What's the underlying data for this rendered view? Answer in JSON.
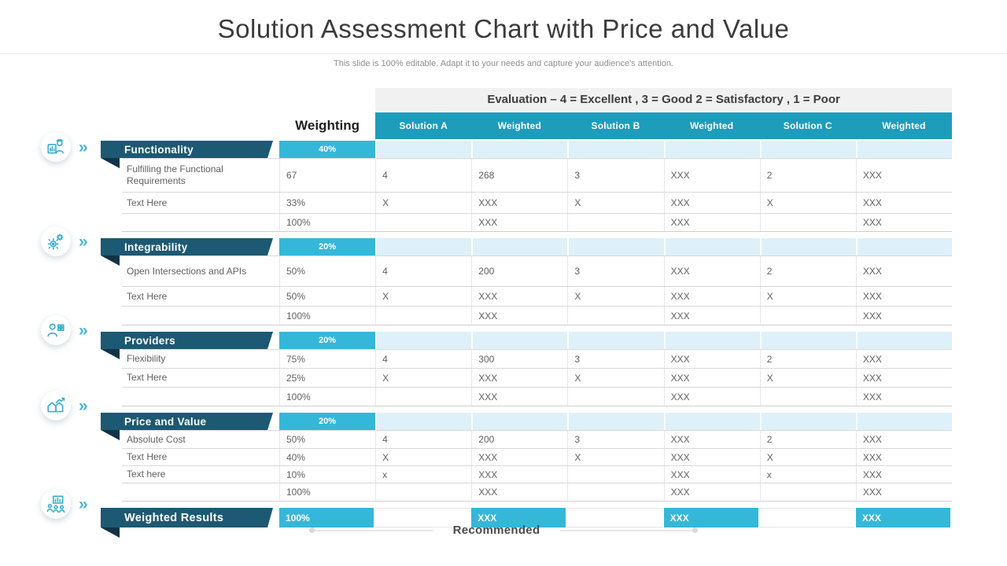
{
  "slide": {
    "title": "Solution Assessment Chart with Price and Value",
    "subtitle": "This slide is 100% editable. Adapt it to your needs and capture your audience's attention."
  },
  "colors": {
    "teal_header": "#1e9cbb",
    "cyan_accent": "#35b7d9",
    "dark_banner": "#1d5972",
    "banner_fold": "#123347",
    "light_band": "#def0f9",
    "evaluation_bar_bg": "#f1f1f1",
    "body_text": "#616161",
    "icon_cyan": "#3aadcd"
  },
  "icons": {
    "chevron_glyph": "»",
    "items": [
      "analyst-monitor-icon",
      "gears-icon",
      "person-network-icon",
      "house-growth-icon",
      "team-chart-icon"
    ]
  },
  "table": {
    "evaluation_note": "Evaluation – 4 = Excellent , 3 = Good 2 = Satisfactory , 1 = Poor",
    "weighting_label": "Weighting",
    "column_headers": [
      "Solution A",
      "Weighted",
      "Solution B",
      "Weighted",
      "Solution C",
      "Weighted"
    ],
    "sections": [
      {
        "name": "Functionality",
        "weight": "40%",
        "icon": "analyst-monitor-icon",
        "rows": [
          {
            "label": "Fulfilling the Functional Requirements",
            "cells": [
              "67",
              "4",
              "268",
              "3",
              "XXX",
              "2",
              "XXX"
            ]
          },
          {
            "label": "Text Here",
            "cells": [
              "33%",
              "X",
              "XXX",
              "X",
              "XXX",
              "X",
              "XXX"
            ]
          },
          {
            "label": "",
            "cells": [
              "100%",
              "",
              "XXX",
              "",
              "XXX",
              "",
              "XXX"
            ]
          }
        ]
      },
      {
        "name": "Integrability",
        "weight": "20%",
        "icon": "gears-icon",
        "rows": [
          {
            "label": "Open Intersections and APIs",
            "cells": [
              "50%",
              "4",
              "200",
              "3",
              "XXX",
              "2",
              "XXX"
            ]
          },
          {
            "label": "Text Here",
            "cells": [
              "50%",
              "X",
              "XXX",
              "X",
              "XXX",
              "X",
              "XXX"
            ]
          },
          {
            "label": "",
            "cells": [
              "100%",
              "",
              "XXX",
              "",
              "XXX",
              "",
              "XXX"
            ]
          }
        ]
      },
      {
        "name": "Providers",
        "weight": "20%",
        "icon": "person-network-icon",
        "rows": [
          {
            "label": "Flexibility",
            "cells": [
              "75%",
              "4",
              "300",
              "3",
              "XXX",
              "2",
              "XXX"
            ]
          },
          {
            "label": "Text Here",
            "cells": [
              "25%",
              "X",
              "XXX",
              "X",
              "XXX",
              "X",
              "XXX"
            ]
          },
          {
            "label": "",
            "cells": [
              "100%",
              "",
              "XXX",
              "",
              "XXX",
              "",
              "XXX"
            ]
          }
        ]
      },
      {
        "name": "Price and Value",
        "weight": "20%",
        "icon": "house-growth-icon",
        "rows": [
          {
            "label": "Absolute Cost",
            "cells": [
              "50%",
              "4",
              "200",
              "3",
              "XXX",
              "2",
              "XXX"
            ]
          },
          {
            "label": "Text Here",
            "cells": [
              "40%",
              "X",
              "XXX",
              "X",
              "XXX",
              "X",
              "XXX"
            ]
          },
          {
            "label": "Text here",
            "cells": [
              "10%",
              "x",
              "XXX",
              "",
              "XXX",
              "x",
              "XXX"
            ]
          },
          {
            "label": "",
            "cells": [
              "100%",
              "",
              "XXX",
              "",
              "XXX",
              "",
              "XXX"
            ]
          }
        ]
      }
    ],
    "weighted_results": {
      "name": "Weighted Results",
      "icon": "team-chart-icon",
      "cells": [
        "100%",
        "",
        "XXX",
        "",
        "XXX",
        "",
        "XXX"
      ]
    }
  },
  "footer": {
    "recommended_label": "Recommended"
  }
}
